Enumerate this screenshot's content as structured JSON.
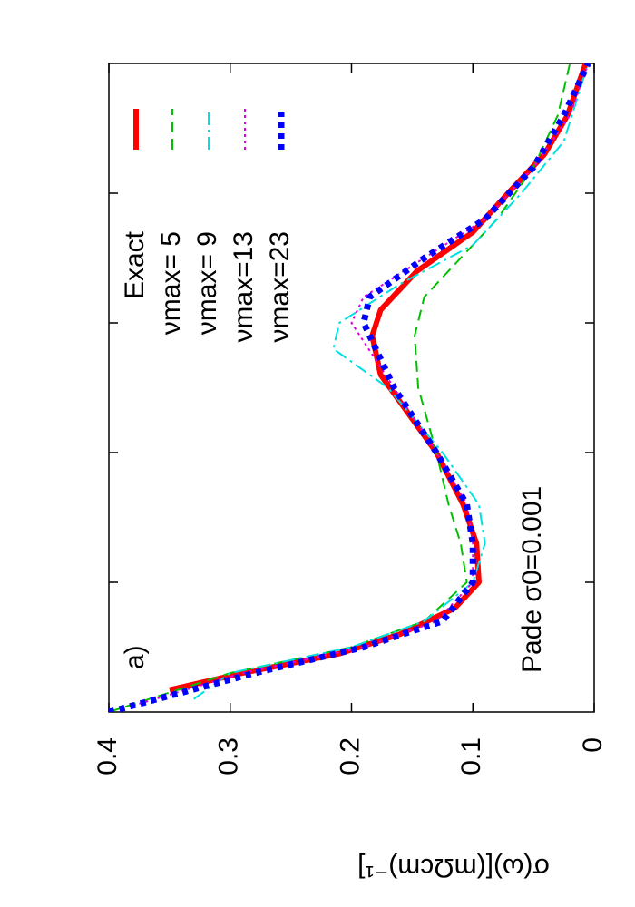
{
  "chart_data": {
    "type": "line",
    "ylabel": "σ(ω)[(mΩcm)⁻¹]",
    "annotations": [
      "a)",
      "Pade σ0=0.001"
    ],
    "xlim": [
      0,
      5
    ],
    "xticks": [
      1,
      2,
      3,
      4
    ],
    "ylim": [
      0,
      0.4
    ],
    "yticks": [
      0.4,
      0.3,
      0.2,
      0.1,
      0
    ],
    "series": [
      {
        "name": "Exact",
        "color": "#ff0000",
        "x": [
          0.17,
          0.3,
          0.45,
          0.6,
          0.8,
          1.0,
          1.3,
          1.6,
          2.0,
          2.3,
          2.6,
          2.9,
          3.1,
          3.4,
          3.7,
          4.0,
          4.3,
          4.6,
          5.0
        ],
        "values": [
          0.35,
          0.29,
          0.21,
          0.16,
          0.115,
          0.095,
          0.097,
          0.108,
          0.13,
          0.153,
          0.176,
          0.183,
          0.176,
          0.146,
          0.1,
          0.071,
          0.041,
          0.022,
          0.007
        ]
      },
      {
        "name": "νmax= 5",
        "color": "#00c000",
        "x": [
          0.0,
          0.3,
          0.5,
          0.7,
          1.0,
          1.3,
          1.6,
          2.0,
          2.5,
          2.9,
          3.2,
          3.5,
          3.8,
          4.2,
          4.6,
          5.0
        ],
        "values": [
          0.4,
          0.3,
          0.2,
          0.14,
          0.105,
          0.11,
          0.12,
          0.13,
          0.145,
          0.148,
          0.14,
          0.11,
          0.08,
          0.05,
          0.03,
          0.02
        ]
      },
      {
        "name": "νmax= 9",
        "color": "#00e0e0",
        "x": [
          0.1,
          0.3,
          0.5,
          0.7,
          1.0,
          1.3,
          1.6,
          2.0,
          2.5,
          2.8,
          3.0,
          3.3,
          3.6,
          4.0,
          4.4,
          5.0
        ],
        "values": [
          0.33,
          0.3,
          0.2,
          0.14,
          0.1,
          0.09,
          0.095,
          0.125,
          0.17,
          0.215,
          0.21,
          0.16,
          0.1,
          0.06,
          0.025,
          0.005
        ]
      },
      {
        "name": "νmax=13",
        "color": "#e000e0",
        "x": [
          0.05,
          0.3,
          0.5,
          0.7,
          1.0,
          1.3,
          1.6,
          2.0,
          2.5,
          3.0,
          3.2,
          3.5,
          3.8,
          4.2,
          4.6,
          5.0
        ],
        "values": [
          0.38,
          0.29,
          0.19,
          0.13,
          0.1,
          0.1,
          0.105,
          0.13,
          0.165,
          0.2,
          0.19,
          0.14,
          0.09,
          0.05,
          0.02,
          0.005
        ]
      },
      {
        "name": "νmax=23",
        "color": "#0000ff",
        "x": [
          0.0,
          0.3,
          0.5,
          0.7,
          1.0,
          1.3,
          1.6,
          2.0,
          2.5,
          3.0,
          3.2,
          3.5,
          3.8,
          4.2,
          4.6,
          5.0
        ],
        "values": [
          0.4,
          0.28,
          0.19,
          0.125,
          0.1,
          0.1,
          0.105,
          0.13,
          0.165,
          0.19,
          0.185,
          0.14,
          0.09,
          0.05,
          0.025,
          0.005
        ]
      }
    ]
  }
}
